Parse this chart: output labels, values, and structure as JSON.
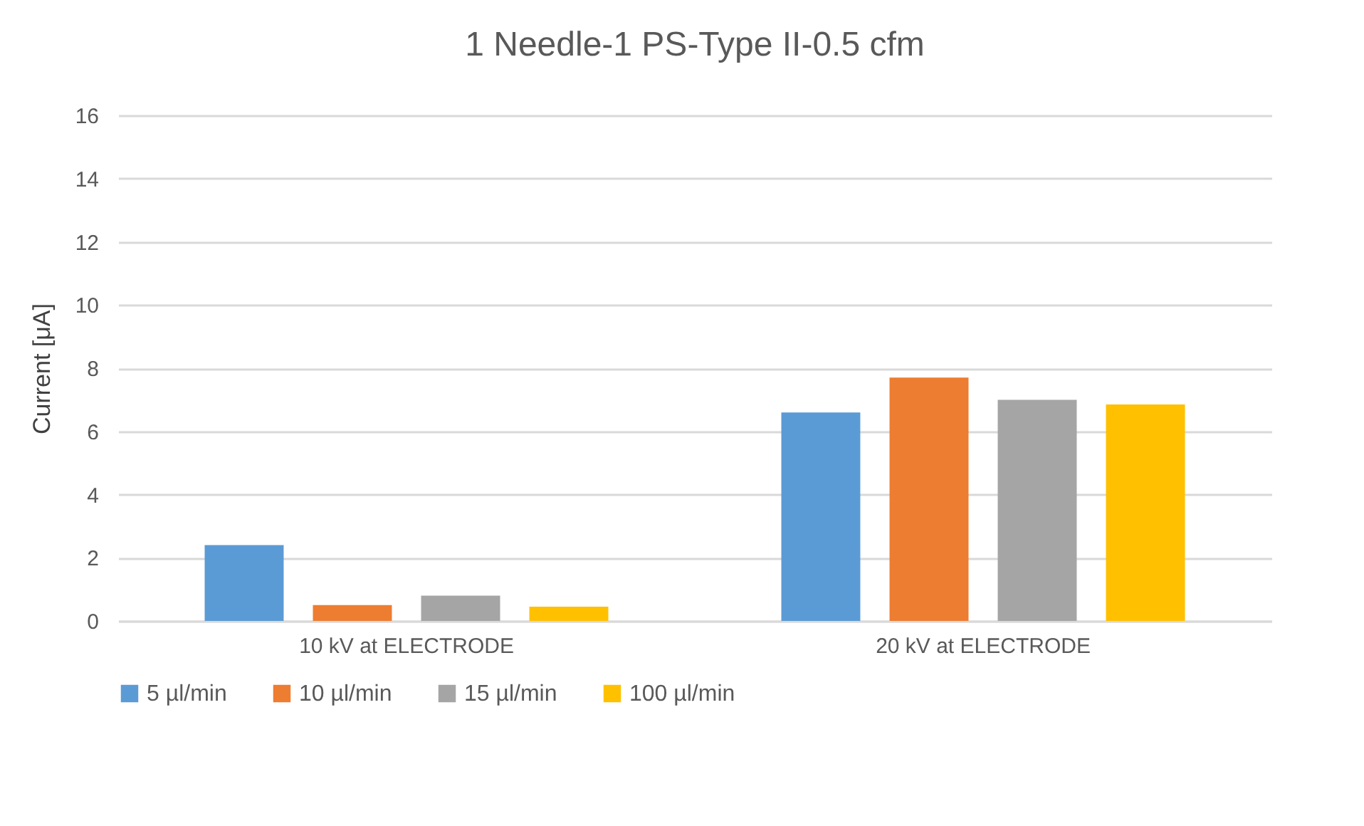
{
  "chart_data": {
    "type": "bar",
    "title": "1 Needle-1 PS-Type II-0.5 cfm",
    "ylabel": "Current [μA]",
    "categories": [
      "10 kV at ELECTRODE",
      "20 kV at ELECTRODE"
    ],
    "series": [
      {
        "name": "5 µl/min",
        "color": "#5b9bd5",
        "values": [
          2.4,
          6.6
        ]
      },
      {
        "name": "10 µl/min",
        "color": "#ed7d31",
        "values": [
          0.5,
          7.7
        ]
      },
      {
        "name": "15 µl/min",
        "color": "#a5a5a5",
        "values": [
          0.8,
          7.0
        ]
      },
      {
        "name": "100 µl/min",
        "color": "#ffc000",
        "values": [
          0.45,
          6.85
        ]
      }
    ],
    "ylim": [
      0,
      16
    ],
    "yticks": [
      0,
      2,
      4,
      6,
      8,
      10,
      12,
      14,
      16
    ],
    "grid": "y",
    "legend": "bottom"
  }
}
